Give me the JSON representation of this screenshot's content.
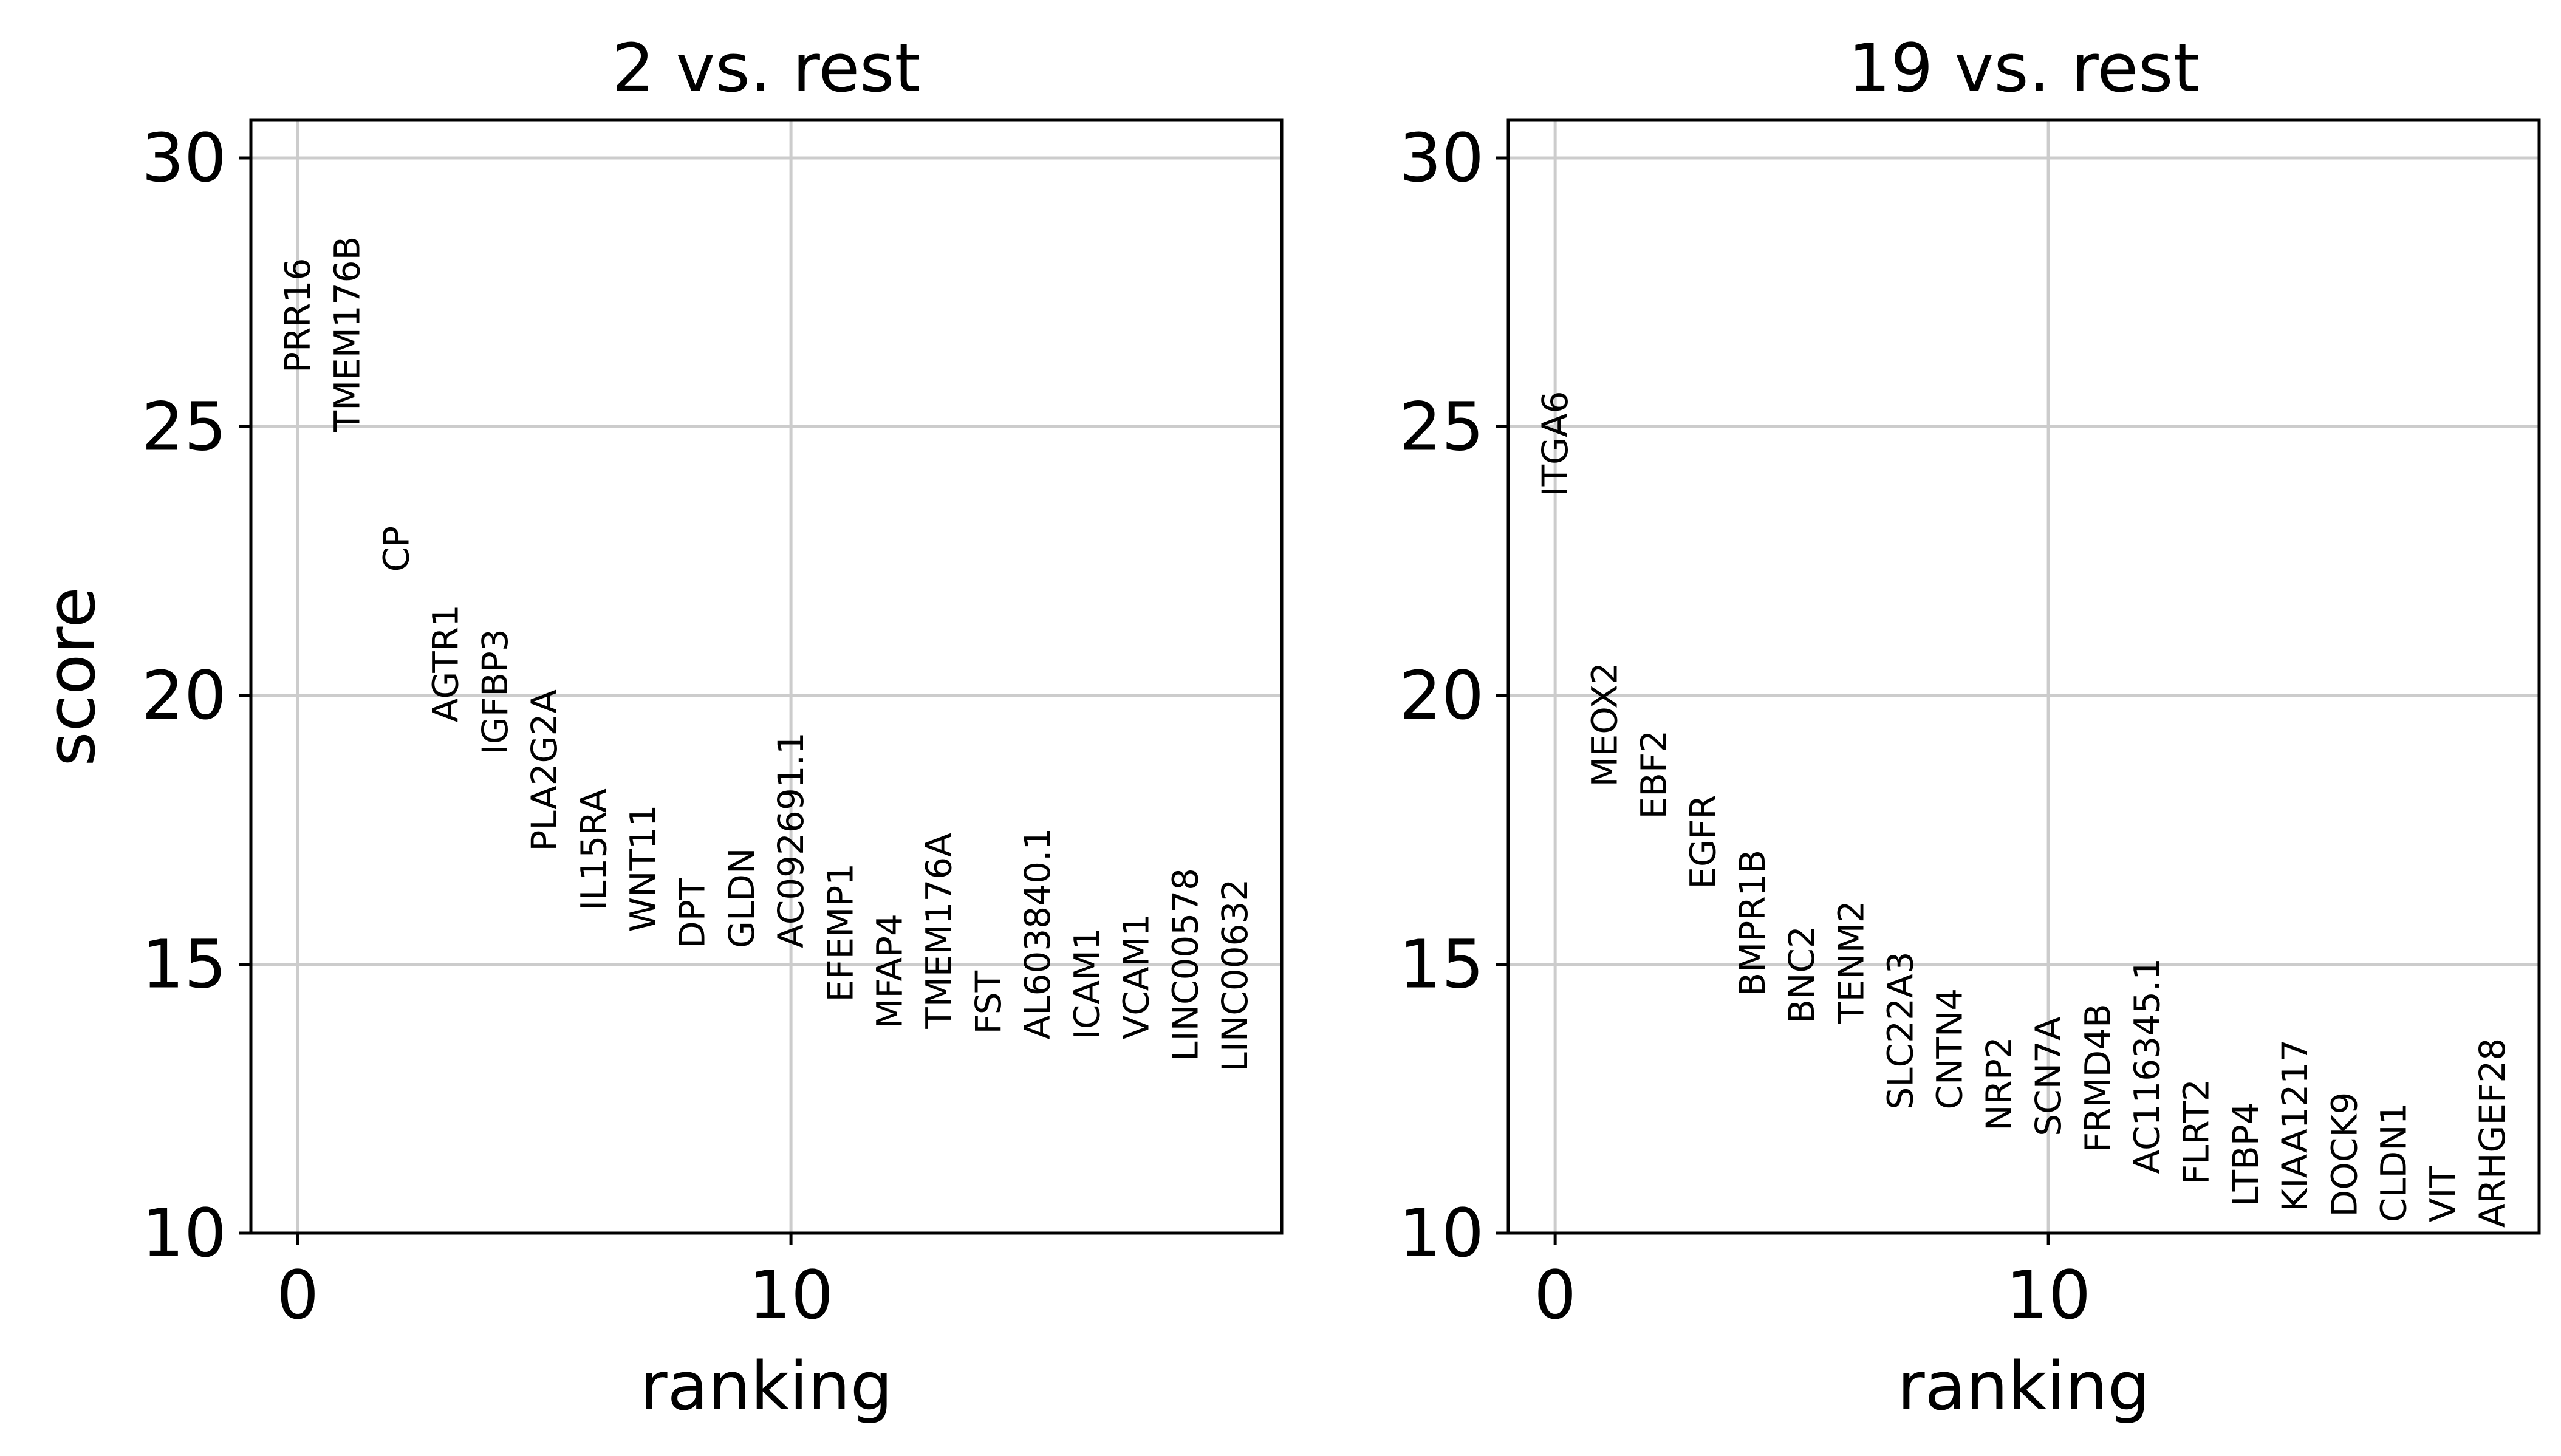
{
  "chart_data": [
    {
      "type": "scatter",
      "title": "2 vs. rest",
      "xlabel": "ranking",
      "ylabel": "score",
      "xlim": [
        -0.95,
        19.95
      ],
      "ylim": [
        10,
        30.7
      ],
      "xticks": [
        0,
        10
      ],
      "yticks": [
        10,
        15,
        20,
        25,
        30
      ],
      "grid": true,
      "points": [
        {
          "x": 0,
          "y": 26.0,
          "label": "PRR16"
        },
        {
          "x": 1,
          "y": 24.9,
          "label": "TMEM176B"
        },
        {
          "x": 2,
          "y": 22.3,
          "label": "CP"
        },
        {
          "x": 3,
          "y": 19.5,
          "label": "AGTR1"
        },
        {
          "x": 4,
          "y": 18.9,
          "label": "IGFBP3"
        },
        {
          "x": 5,
          "y": 17.1,
          "label": "PLA2G2A"
        },
        {
          "x": 6,
          "y": 16.0,
          "label": "IL15RA"
        },
        {
          "x": 7,
          "y": 15.6,
          "label": "WNT11"
        },
        {
          "x": 8,
          "y": 15.3,
          "label": "DPT"
        },
        {
          "x": 9,
          "y": 15.3,
          "label": "GLDN"
        },
        {
          "x": 10,
          "y": 15.3,
          "label": "AC092691.1"
        },
        {
          "x": 11,
          "y": 14.3,
          "label": "EFEMP1"
        },
        {
          "x": 12,
          "y": 13.8,
          "label": "MFAP4"
        },
        {
          "x": 13,
          "y": 13.8,
          "label": "TMEM176A"
        },
        {
          "x": 14,
          "y": 13.7,
          "label": "FST"
        },
        {
          "x": 15,
          "y": 13.6,
          "label": "AL603840.1"
        },
        {
          "x": 16,
          "y": 13.6,
          "label": "ICAM1"
        },
        {
          "x": 17,
          "y": 13.6,
          "label": "VCAM1"
        },
        {
          "x": 18,
          "y": 13.2,
          "label": "LINC00578"
        },
        {
          "x": 19,
          "y": 13.0,
          "label": "LINC00632"
        }
      ]
    },
    {
      "type": "scatter",
      "title": "19 vs. rest",
      "xlabel": "ranking",
      "ylabel": "",
      "xlim": [
        -0.95,
        19.95
      ],
      "ylim": [
        10,
        30.7
      ],
      "xticks": [
        0,
        10
      ],
      "yticks": [
        10,
        15,
        20,
        25,
        30
      ],
      "grid": true,
      "points": [
        {
          "x": 0,
          "y": 23.7,
          "label": "ITGA6"
        },
        {
          "x": 1,
          "y": 18.3,
          "label": "MEOX2"
        },
        {
          "x": 2,
          "y": 17.7,
          "label": "EBF2"
        },
        {
          "x": 3,
          "y": 16.4,
          "label": "EGFR"
        },
        {
          "x": 4,
          "y": 14.4,
          "label": "BMPR1B"
        },
        {
          "x": 5,
          "y": 13.9,
          "label": "BNC2"
        },
        {
          "x": 6,
          "y": 13.9,
          "label": "TENM2"
        },
        {
          "x": 7,
          "y": 12.3,
          "label": "SLC22A3"
        },
        {
          "x": 8,
          "y": 12.3,
          "label": "CNTN4"
        },
        {
          "x": 9,
          "y": 11.9,
          "label": "NRP2"
        },
        {
          "x": 10,
          "y": 11.8,
          "label": "SCN7A"
        },
        {
          "x": 11,
          "y": 11.5,
          "label": "FRMD4B"
        },
        {
          "x": 12,
          "y": 11.1,
          "label": "AC116345.1"
        },
        {
          "x": 13,
          "y": 10.9,
          "label": "FLRT2"
        },
        {
          "x": 14,
          "y": 10.5,
          "label": "LTBP4"
        },
        {
          "x": 15,
          "y": 10.4,
          "label": "KIAA1217"
        },
        {
          "x": 16,
          "y": 10.3,
          "label": "DOCK9"
        },
        {
          "x": 17,
          "y": 10.2,
          "label": "CLDN1"
        },
        {
          "x": 18,
          "y": 10.2,
          "label": "VIT"
        },
        {
          "x": 19,
          "y": 10.1,
          "label": "ARHGEF28"
        }
      ]
    }
  ]
}
